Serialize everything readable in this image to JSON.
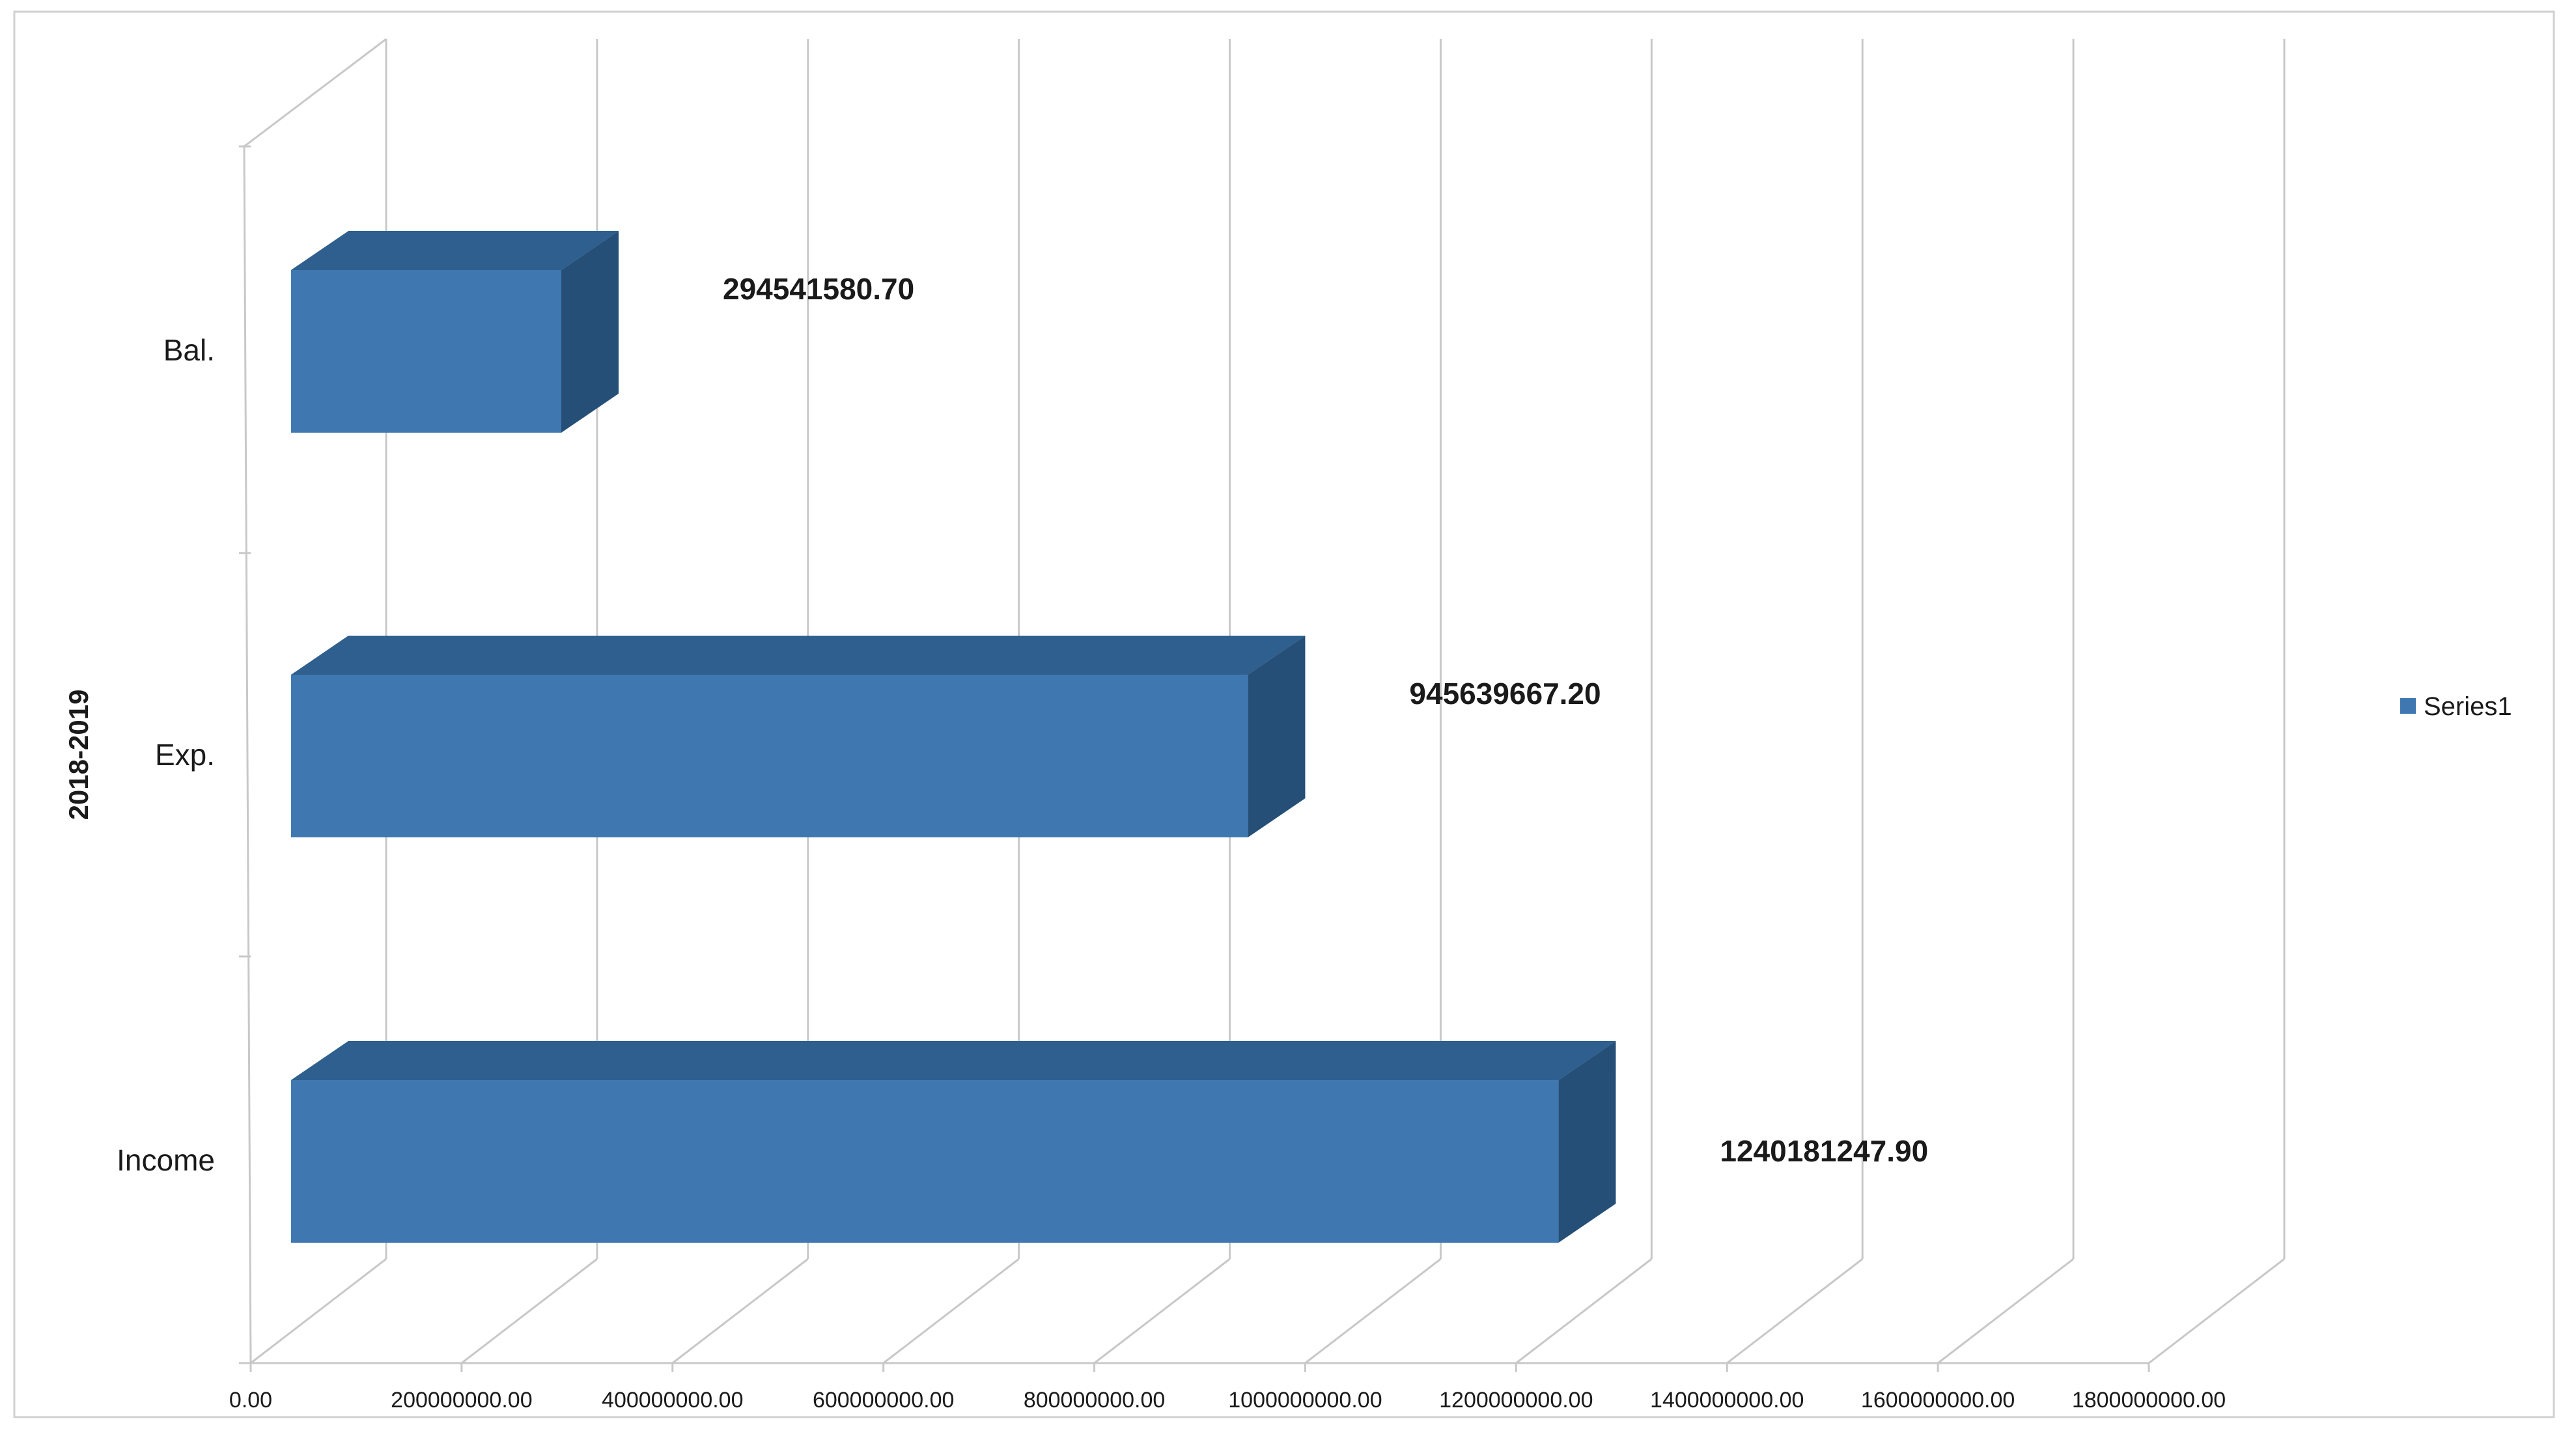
{
  "chart_data": {
    "type": "bar",
    "orientation": "horizontal",
    "style": "3d",
    "categories": [
      "Income",
      "Exp.",
      "Bal."
    ],
    "series": [
      {
        "name": "Series1",
        "values": [
          1240181247.9,
          945639667.2,
          294541580.7
        ],
        "labels": [
          "1240181247.90",
          "945639667.20",
          "294541580.70"
        ]
      }
    ],
    "title": "",
    "xlabel": "",
    "ylabel": "2018-2019",
    "xlim": [
      0,
      1800000000
    ],
    "x_ticks": [
      0,
      200000000,
      400000000,
      600000000,
      800000000,
      1000000000,
      1200000000,
      1400000000,
      1600000000,
      1800000000
    ],
    "x_tick_labels": [
      "0.00",
      "200000000.00",
      "400000000.00",
      "600000000.00",
      "800000000.00",
      "1000000000.00",
      "1200000000.00",
      "1400000000.00",
      "1600000000.00",
      "1800000000.00"
    ],
    "grid": true,
    "legend": {
      "position": "right",
      "entries": [
        "Series1"
      ]
    },
    "colors": {
      "bar_front": "#3f78b1",
      "bar_top": "#2e5f8e",
      "bar_side": "#264f78",
      "grid": "#c8c8c8"
    }
  }
}
